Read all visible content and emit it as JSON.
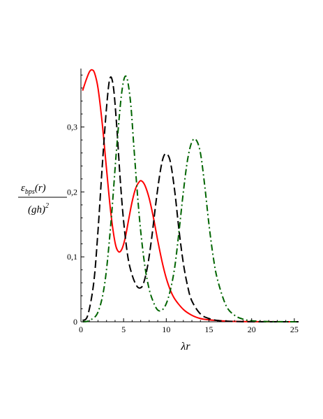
{
  "chart_data": {
    "type": "line",
    "xlabel": "λr",
    "ylabel": {
      "numerator": "ε",
      "numerator_sub": "bps",
      "numerator_arg": "(r)",
      "denominator": "(gh)",
      "denominator_sup": "2"
    },
    "xlim": [
      0,
      25.5
    ],
    "ylim": [
      0,
      0.39
    ],
    "xticks": [
      0,
      5,
      10,
      15,
      20,
      25
    ],
    "xtick_labels": [
      "0",
      "5",
      "10",
      "15",
      "20",
      "25"
    ],
    "yticks": [
      0,
      0.1,
      0.2,
      0.3
    ],
    "ytick_labels": [
      "0",
      "0,1",
      "0,2",
      "0,3"
    ],
    "grid": false,
    "series": [
      {
        "color": "#ff0000",
        "style": "solid",
        "x": [
          0.2,
          0.6,
          1.0,
          1.3,
          1.6,
          2.0,
          2.5,
          3.0,
          3.5,
          4.0,
          4.4,
          4.8,
          5.2,
          5.6,
          6.0,
          6.4,
          6.8,
          7.1,
          7.5,
          8.0,
          8.5,
          9.0,
          9.5,
          10.0,
          10.5,
          11.0,
          12.0,
          13.0,
          14.0,
          15.0,
          16.0,
          17.0,
          18.0,
          20.0,
          22.0,
          25.5
        ],
        "y": [
          0.356,
          0.372,
          0.385,
          0.388,
          0.383,
          0.36,
          0.305,
          0.235,
          0.168,
          0.122,
          0.108,
          0.112,
          0.13,
          0.158,
          0.185,
          0.205,
          0.215,
          0.217,
          0.21,
          0.19,
          0.16,
          0.125,
          0.093,
          0.067,
          0.048,
          0.035,
          0.019,
          0.01,
          0.005,
          0.003,
          0.002,
          0.001,
          0.0005,
          0.0002,
          0.0001,
          0
        ]
      },
      {
        "color": "#000000",
        "style": "dash",
        "x": [
          0.2,
          0.8,
          1.5,
          2.0,
          2.5,
          3.0,
          3.4,
          3.8,
          4.2,
          4.6,
          5.0,
          5.5,
          6.0,
          6.5,
          6.9,
          7.3,
          7.8,
          8.3,
          8.8,
          9.3,
          9.7,
          10.1,
          10.5,
          11.0,
          11.5,
          12.0,
          12.5,
          13.0,
          14.0,
          15.0,
          16.0,
          17.0,
          18.0,
          20.0,
          25.5
        ],
        "y": [
          0.002,
          0.01,
          0.06,
          0.14,
          0.24,
          0.33,
          0.375,
          0.362,
          0.3,
          0.22,
          0.155,
          0.1,
          0.072,
          0.056,
          0.052,
          0.058,
          0.085,
          0.13,
          0.185,
          0.232,
          0.255,
          0.258,
          0.245,
          0.2,
          0.14,
          0.09,
          0.055,
          0.032,
          0.012,
          0.005,
          0.002,
          0.001,
          0.0005,
          0.0001,
          0
        ]
      },
      {
        "color": "#006400",
        "style": "dashdot",
        "x": [
          0.2,
          1.0,
          2.0,
          2.8,
          3.5,
          4.2,
          4.8,
          5.3,
          5.8,
          6.2,
          6.6,
          7.0,
          7.5,
          8.0,
          8.5,
          9.0,
          9.5,
          10.0,
          10.5,
          11.0,
          11.5,
          12.0,
          12.5,
          13.0,
          13.5,
          14.0,
          14.5,
          15.0,
          15.5,
          16.0,
          17.0,
          18.0,
          19.0,
          20.0,
          22.0,
          25.5
        ],
        "y": [
          0,
          0.002,
          0.015,
          0.06,
          0.15,
          0.27,
          0.355,
          0.378,
          0.34,
          0.27,
          0.2,
          0.14,
          0.085,
          0.05,
          0.03,
          0.018,
          0.018,
          0.028,
          0.05,
          0.085,
          0.14,
          0.2,
          0.25,
          0.277,
          0.28,
          0.26,
          0.21,
          0.15,
          0.1,
          0.065,
          0.025,
          0.01,
          0.004,
          0.0015,
          0.0003,
          0
        ]
      }
    ]
  }
}
